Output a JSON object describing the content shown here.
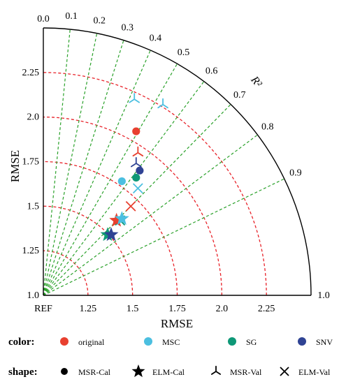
{
  "chart_data": {
    "type": "taylor",
    "title": "",
    "xlabel": "RMSE",
    "ylabel": "RMSE",
    "angular_label": "R²",
    "reference_label": "REF",
    "radial_range": [
      1.0,
      2.5
    ],
    "radial_ticks": [
      "1.0",
      "1.25",
      "1.5",
      "1.75",
      "2.0",
      "2.25"
    ],
    "radial_tick_values": [
      1.0,
      1.25,
      1.5,
      1.75,
      2.0,
      2.25
    ],
    "x_axis_end_label": "1.0",
    "correlation_ticks": [
      "0.0",
      "0.1",
      "0.2",
      "0.3",
      "0.4",
      "0.5",
      "0.6",
      "0.7",
      "0.8",
      "0.9"
    ],
    "correlation_values": [
      0.0,
      0.1,
      0.2,
      0.3,
      0.4,
      0.5,
      0.6,
      0.7,
      0.8,
      0.9
    ],
    "grid_colors": {
      "radial_arcs": "#e8232a",
      "correlation_rays": "#2aa12a",
      "frame": "#000000"
    },
    "legend": {
      "color_label": "color:",
      "shape_label": "shape:",
      "colors": [
        {
          "name": "original",
          "color": "#e8402f"
        },
        {
          "name": "MSC",
          "color": "#4bbfe0"
        },
        {
          "name": "SG",
          "color": "#0e9877"
        },
        {
          "name": "SNV",
          "color": "#2f4394"
        }
      ],
      "shapes": [
        {
          "name": "MSR-Cal",
          "marker": "circle"
        },
        {
          "name": "ELM-Cal",
          "marker": "star"
        },
        {
          "name": "MSR-Val",
          "marker": "tri-branch"
        },
        {
          "name": "ELM-Val",
          "marker": "cross"
        }
      ]
    },
    "points": [
      {
        "preprocessing": "original",
        "model": "MSR-Cal",
        "x": 1.52,
        "y": 1.92
      },
      {
        "preprocessing": "MSC",
        "model": "MSR-Cal",
        "x": 1.44,
        "y": 1.64
      },
      {
        "preprocessing": "SG",
        "model": "MSR-Cal",
        "x": 1.52,
        "y": 1.66
      },
      {
        "preprocessing": "SNV",
        "model": "MSR-Cal",
        "x": 1.54,
        "y": 1.7
      },
      {
        "preprocessing": "original",
        "model": "MSR-Val",
        "x": 1.53,
        "y": 1.8
      },
      {
        "preprocessing": "MSC",
        "model": "MSR-Val",
        "x": 1.51,
        "y": 2.1
      },
      {
        "preprocessing": "MSC",
        "model": "MSR-Val",
        "x": 1.67,
        "y": 2.07
      },
      {
        "preprocessing": "SNV",
        "model": "MSR-Val",
        "x": 1.52,
        "y": 1.74
      },
      {
        "preprocessing": "original",
        "model": "ELM-Val",
        "x": 1.49,
        "y": 1.5
      },
      {
        "preprocessing": "MSC",
        "model": "ELM-Val",
        "x": 1.53,
        "y": 1.6
      },
      {
        "preprocessing": "SG",
        "model": "ELM-Val",
        "x": 1.43,
        "y": 1.42
      },
      {
        "preprocessing": "original",
        "model": "ELM-Cal",
        "x": 1.41,
        "y": 1.42
      },
      {
        "preprocessing": "MSC",
        "model": "ELM-Cal",
        "x": 1.44,
        "y": 1.43
      },
      {
        "preprocessing": "SG",
        "model": "ELM-Cal",
        "x": 1.36,
        "y": 1.34
      },
      {
        "preprocessing": "SNV",
        "model": "ELM-Cal",
        "x": 1.38,
        "y": 1.34
      }
    ]
  }
}
